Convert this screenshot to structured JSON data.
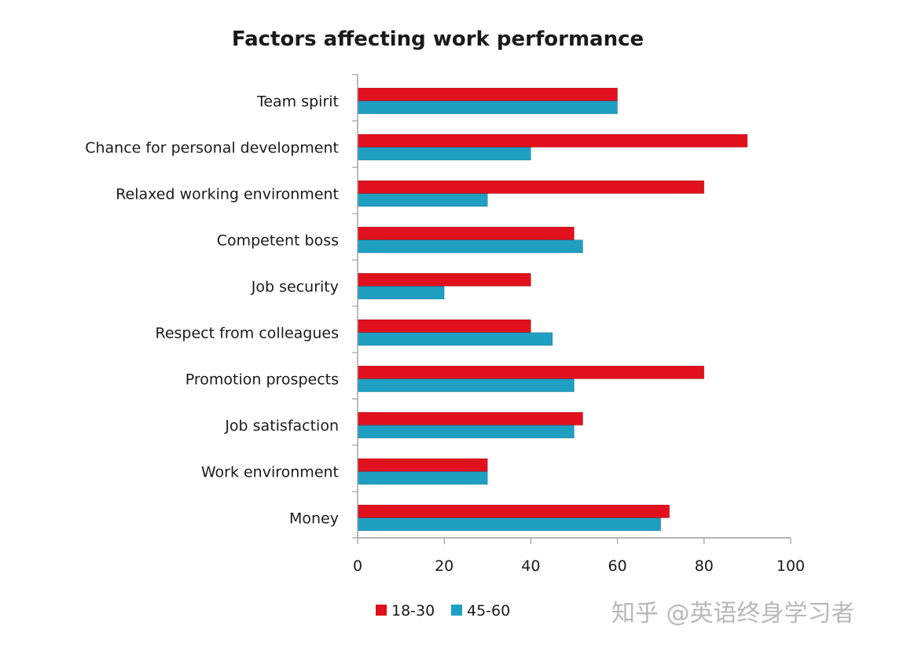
{
  "colors": {
    "series_18_30": "#e0101c",
    "series_45_60": "#1f9fc2",
    "axis": "#a0a0a0",
    "text": "#1a1a1a",
    "watermark": "#b8b8b8"
  },
  "watermark": "知乎 @英语终身学习者",
  "chart_data": {
    "type": "bar",
    "orientation": "horizontal",
    "title": "Factors affecting work performance",
    "xlabel": "",
    "ylabel": "",
    "xlim": [
      0,
      100
    ],
    "xticks": [
      0,
      20,
      40,
      60,
      80,
      100
    ],
    "grid": false,
    "legend_position": "bottom",
    "categories": [
      "Team spirit",
      "Chance for personal development",
      "Relaxed working environment",
      "Competent boss",
      "Job security",
      "Respect from colleagues",
      "Promotion prospects",
      "Job satisfaction",
      "Work environment",
      "Money"
    ],
    "series": [
      {
        "name": "18-30",
        "values": [
          60,
          90,
          80,
          50,
          40,
          40,
          80,
          52,
          30,
          72
        ]
      },
      {
        "name": "45-60",
        "values": [
          60,
          40,
          30,
          52,
          20,
          45,
          50,
          50,
          30,
          70
        ]
      }
    ]
  }
}
